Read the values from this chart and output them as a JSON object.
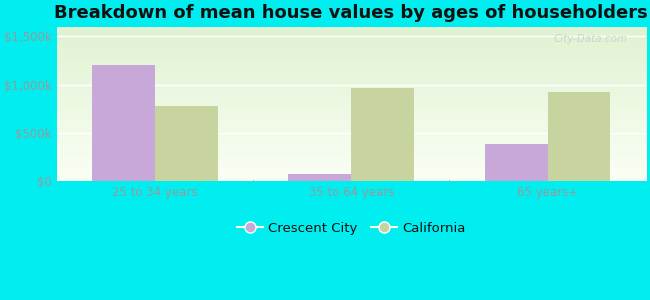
{
  "title": "Breakdown of mean house values by ages of householders",
  "categories": [
    "25 to 34 years",
    "35 to 64 years",
    "65 years+"
  ],
  "crescent_city": [
    1200000,
    75000,
    390000
  ],
  "california": [
    775000,
    960000,
    920000
  ],
  "crescent_city_color": "#c8a8d8",
  "california_color": "#c8d4a0",
  "ylim": [
    0,
    1600000
  ],
  "yticks": [
    0,
    500000,
    1000000,
    1500000
  ],
  "ytick_labels": [
    "$0",
    "$500k",
    "$1,000k",
    "$1,500k"
  ],
  "background_color": "#00eef0",
  "watermark": "City-Data.com",
  "legend_labels": [
    "Crescent City",
    "California"
  ],
  "bar_width": 0.32,
  "title_fontsize": 13,
  "tick_fontsize": 8.5,
  "legend_fontsize": 9.5,
  "tick_color": "#999999",
  "grid_color": "#ffffff"
}
